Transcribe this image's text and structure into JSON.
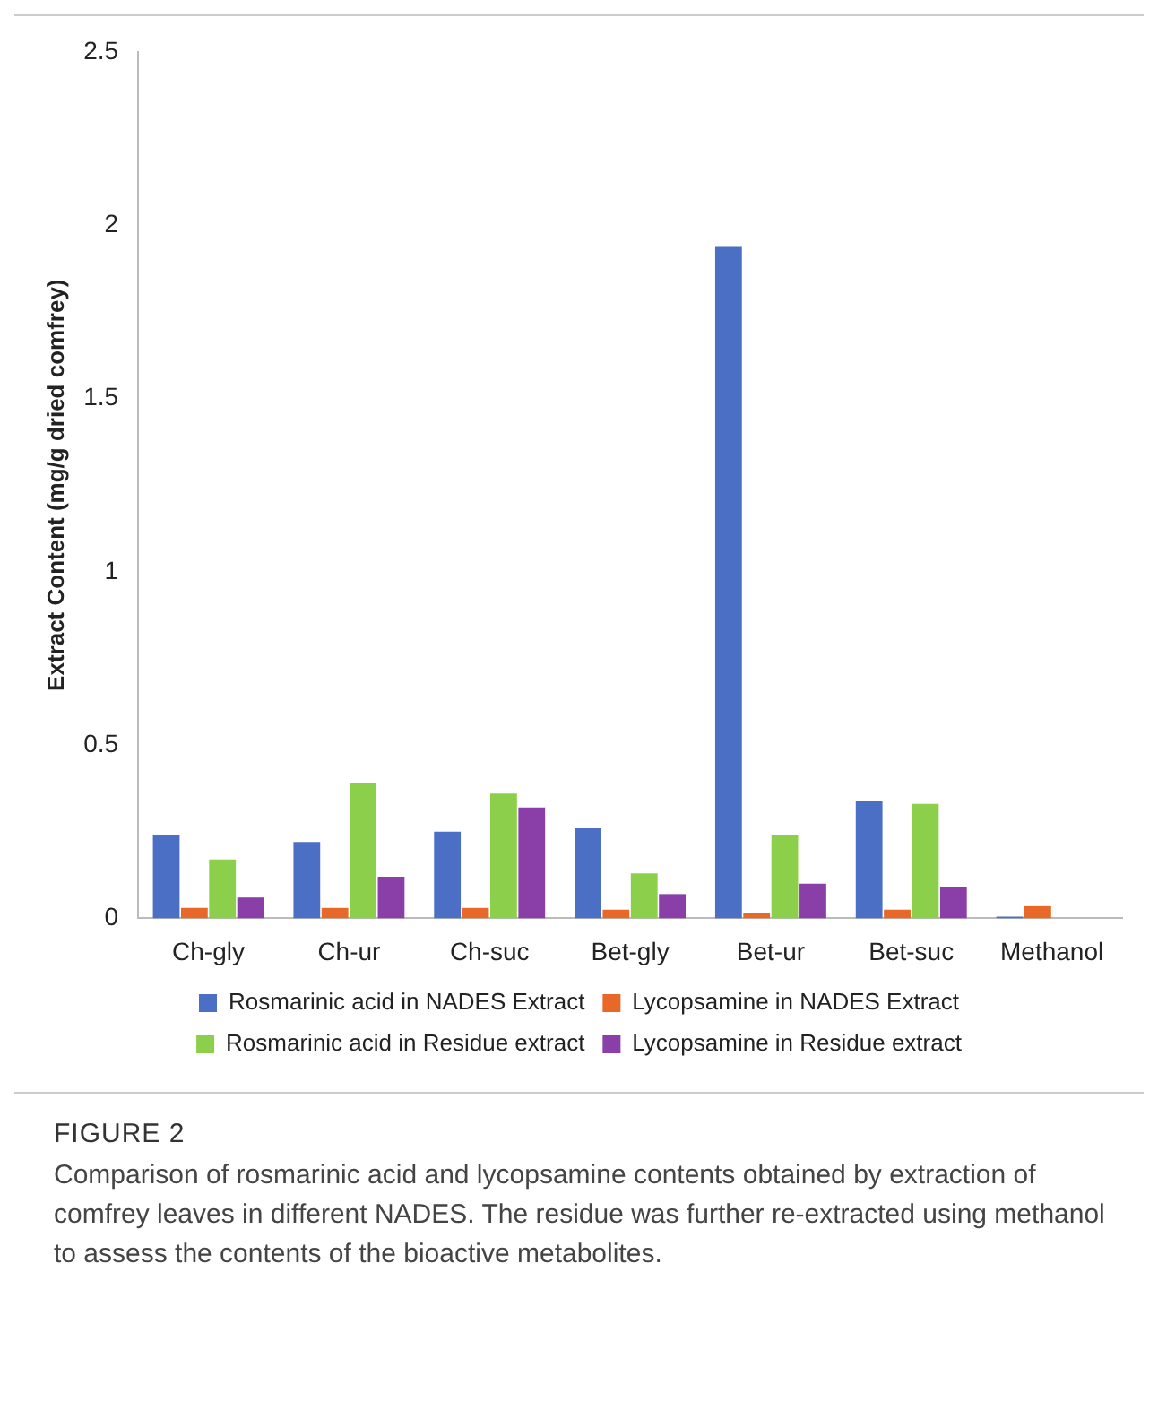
{
  "chart_data": {
    "type": "bar",
    "ylabel": "Extract Content (mg/g dried comfrey)",
    "categories": [
      "Ch-gly",
      "Ch-ur",
      "Ch-suc",
      "Bet-gly",
      "Bet-ur",
      "Bet-suc",
      "Methanol"
    ],
    "series": [
      {
        "name": "Rosmarinic acid in NADES Extract",
        "color": "#4a6fc4",
        "values": [
          0.24,
          0.22,
          0.25,
          0.26,
          1.94,
          0.34,
          0.005
        ]
      },
      {
        "name": "Lycopsamine in NADES Extract",
        "color": "#e8682a",
        "values": [
          0.03,
          0.03,
          0.03,
          0.025,
          0.015,
          0.025,
          0.035
        ]
      },
      {
        "name": "Rosmarinic acid in Residue extract",
        "color": "#8ccf4a",
        "values": [
          0.17,
          0.39,
          0.36,
          0.13,
          0.24,
          0.33,
          0
        ]
      },
      {
        "name": "Lycopsamine in Residue extract",
        "color": "#8a3fa8",
        "values": [
          0.06,
          0.12,
          0.32,
          0.07,
          0.1,
          0.09,
          0
        ]
      }
    ],
    "ylim": [
      0,
      2.5
    ],
    "yticks": [
      0,
      0.5,
      1,
      1.5,
      2,
      2.5
    ],
    "grid": false,
    "legend": "bottom",
    "annotations": [
      "FIGURE 2",
      "Comparison of rosmarinic acid and lycopsamine contents obtained by extraction of comfrey leaves in different NADES. The residue was further re-extracted using methanol to assess the contents of the bioactive metabolites."
    ]
  }
}
